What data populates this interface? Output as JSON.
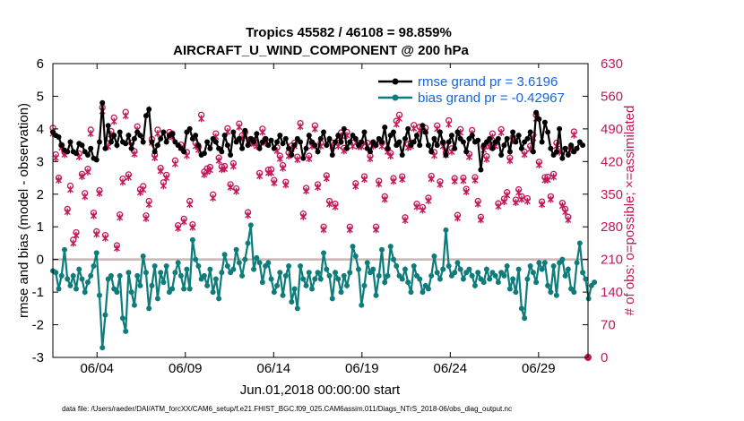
{
  "chart_data": {
    "type": "line",
    "title": "Tropics 45582 / 46108 = 98.859%",
    "subtitle": "AIRCRAFT_U_WIND_COMPONENT @ 200 hPa",
    "xlabel": "Jun.01,2018 00:00:00 start",
    "ylabel_left": "rmse and bias (model - observation)",
    "ylabel_right": "# of obs: o=possible; ×=assimilated",
    "ylim_left": [
      -3,
      6
    ],
    "ylim_right": [
      0,
      630
    ],
    "xlim": [
      1.5,
      31.8
    ],
    "yticks_left": [
      "-3",
      "-2",
      "-1",
      "0",
      "1",
      "2",
      "3",
      "4",
      "5",
      "6"
    ],
    "yticks_right": [
      "0",
      "70",
      "140",
      "210",
      "280",
      "350",
      "420",
      "490",
      "560",
      "630"
    ],
    "xticks": [
      {
        "value": 4,
        "label": "06/04"
      },
      {
        "value": 9,
        "label": "06/09"
      },
      {
        "value": 14,
        "label": "06/14"
      },
      {
        "value": 19,
        "label": "06/19"
      },
      {
        "value": 24,
        "label": "06/24"
      },
      {
        "value": 29,
        "label": "06/29"
      }
    ],
    "legend": [
      {
        "label": "rmse grand pr = 3.6196",
        "color": "#000000"
      },
      {
        "label": "bias grand pr = -0.42967",
        "color": "#0e7c7b"
      }
    ],
    "zero_line": 0,
    "series": [
      {
        "name": "rmse",
        "axis": "left",
        "color": "#000000",
        "values": [
          3.9,
          3.8,
          3.75,
          3.5,
          3.35,
          3.3,
          3.6,
          3.3,
          3.25,
          3.55,
          3.5,
          3.3,
          3.2,
          3.4,
          3.1,
          3.05,
          3.6,
          4.8,
          3.4,
          4.1,
          3.6,
          3.8,
          3.5,
          3.9,
          3.6,
          3.55,
          3.8,
          3.4,
          3.7,
          3.9,
          3.8,
          3.6,
          4.4,
          4.6,
          3.6,
          3.3,
          3.5,
          3.7,
          3.9,
          3.6,
          3.8,
          3.85,
          3.6,
          3.5,
          3.4,
          3.3,
          3.9,
          4.0,
          3.7,
          3.8,
          3.5,
          3.2,
          3.25,
          3.6,
          3.4,
          3.7,
          3.6,
          3.4,
          3.3,
          3.8,
          3.5,
          3.2,
          3.9,
          3.6,
          3.7,
          3.4,
          3.95,
          3.5,
          3.7,
          3.6,
          3.85,
          3.4,
          3.6,
          3.7,
          3.5,
          3.65,
          3.4,
          3.6,
          3.8,
          3.55,
          3.7,
          3.4,
          3.2,
          3.5,
          3.7,
          3.6,
          3.1,
          3.4,
          3.8,
          3.6,
          3.5,
          3.3,
          3.7,
          3.9,
          3.5,
          3.7,
          3.2,
          3.6,
          3.8,
          3.6,
          4.0,
          3.4,
          3.6,
          3.8,
          3.7,
          3.5,
          3.6,
          3.9,
          3.4,
          3.3,
          3.6,
          3.5,
          3.7,
          3.6,
          4.05,
          3.4,
          3.8,
          3.9,
          3.5,
          3.6,
          3.2,
          3.7,
          4.0,
          3.5,
          3.6,
          3.8,
          3.5,
          4.1,
          3.9,
          3.5,
          3.3,
          3.7,
          3.5,
          3.9,
          3.6,
          3.2,
          3.6,
          3.8,
          3.4,
          3.9,
          3.7,
          3.6,
          3.3,
          3.7,
          3.8,
          3.6,
          3.65,
          2.75,
          3.5,
          3.6,
          3.7,
          3.4,
          3.6,
          3.7,
          3.2,
          3.5,
          3.7,
          3.3,
          3.9,
          3.6,
          3.8,
          3.4,
          3.6,
          3.7,
          3.9,
          3.3,
          4.5,
          4.3,
          3.6,
          4.2,
          3.9,
          3.4,
          3.2,
          3.3,
          4.0,
          3.1,
          3.4,
          3.2,
          3.5,
          3.3,
          3.4,
          3.6,
          3.5
        ]
      },
      {
        "name": "bias",
        "axis": "left",
        "color": "#0e7c7b",
        "values": [
          -0.35,
          -0.4,
          -0.9,
          -0.5,
          0.3,
          -0.6,
          -0.8,
          -0.5,
          -0.9,
          -0.3,
          -0.6,
          -1.0,
          -0.7,
          -0.5,
          -0.2,
          0.2,
          -1.1,
          -2.7,
          -1.7,
          -0.6,
          -0.5,
          -0.9,
          -1.0,
          -0.5,
          -1.8,
          -2.2,
          -0.4,
          -1.0,
          -1.4,
          -0.5,
          -0.8,
          0.1,
          -0.4,
          -1.5,
          -0.8,
          -0.2,
          -1.2,
          -0.4,
          -0.7,
          -0.2,
          -1.0,
          -0.9,
          -0.4,
          -0.1,
          -0.5,
          -0.9,
          -0.3,
          -0.9,
          0.6,
          0.0,
          -0.2,
          -0.6,
          -0.5,
          -0.8,
          -0.3,
          -1.0,
          -0.6,
          -1.2,
          -0.4,
          0.15,
          -0.2,
          -0.4,
          -0.3,
          0.3,
          -0.1,
          -0.5,
          0.0,
          0.5,
          1.05,
          -0.3,
          0.05,
          -0.1,
          -0.7,
          -0.2,
          -0.1,
          -0.6,
          -1.0,
          -0.8,
          -0.4,
          -1.1,
          -0.5,
          -0.2,
          -1.3,
          -0.9,
          -1.5,
          -0.2,
          -0.6,
          -0.8,
          -0.4,
          -0.9,
          -0.6,
          -0.4,
          -0.6,
          0.2,
          -0.3,
          -0.5,
          -1.2,
          -0.4,
          -0.6,
          -1.0,
          -0.5,
          -0.8,
          -0.4,
          0.4,
          0.1,
          -0.3,
          -1.4,
          -0.8,
          -0.1,
          -0.4,
          -0.3,
          -1.1,
          -0.5,
          0.3,
          -0.7,
          -0.5,
          0.4,
          0.0,
          -0.2,
          -0.5,
          -0.6,
          -0.3,
          -0.7,
          -1.0,
          -0.2,
          -0.5,
          -0.6,
          -1.0,
          -0.8,
          -0.9,
          -0.5,
          0.1,
          -0.4,
          -0.6,
          -0.3,
          0.9,
          -0.2,
          -0.5,
          -0.4,
          -0.1,
          -0.3,
          -0.6,
          -0.4,
          -0.3,
          -0.5,
          -0.8,
          -0.4,
          -0.6,
          -0.7,
          -0.3,
          -0.6,
          -0.4,
          -0.5,
          -0.7,
          -0.4,
          -0.5,
          -0.2,
          -0.9,
          -0.6,
          -1.0,
          -0.3,
          -1.5,
          -1.8,
          -0.6,
          -0.2,
          -0.4,
          -0.7,
          -0.1,
          -0.3,
          -0.1,
          -0.8,
          -1.0,
          -0.2,
          -1.1,
          -0.1,
          0.0,
          -0.5,
          -0.3,
          -0.9,
          -1.0,
          -0.1,
          0.5,
          -0.4,
          -0.6,
          -1.2,
          -0.8,
          -0.7
        ]
      },
      {
        "name": "possible",
        "axis": "right",
        "color": "#c2185b",
        "marker": "o",
        "values": [
          492,
          435,
          385,
          455,
          440,
          318,
          368,
          252,
          268,
          437,
          393,
          352,
          404,
          488,
          310,
          270,
          358,
          536,
          262,
          459,
          485,
          514,
          240,
          306,
          383,
          526,
          392,
          460,
          442,
          495,
          360,
          367,
          304,
          335,
          468,
          434,
          488,
          406,
          375,
          391,
          483,
          480,
          422,
          283,
          456,
          297,
          440,
          335,
          285,
          460,
          451,
          520,
          398,
          405,
          408,
          349,
          480,
          428,
          409,
          410,
          491,
          371,
          416,
          362,
          501,
          476,
          483,
          311,
          468,
          465,
          460,
          395,
          490,
          468,
          402,
          403,
          380,
          450,
          432,
          412,
          376,
          439,
          454,
          460,
          430,
          502,
          308,
          363,
          432,
          460,
          497,
          371,
          460,
          280,
          390,
          335,
          460,
          329,
          460,
          482,
          449,
          483,
          280,
          460,
          373,
          459,
          458,
          388,
          460,
          432,
          460,
          280,
          378,
          460,
          345,
          447,
          438,
          384,
          507,
          520,
          388,
          300,
          457,
          460,
          498,
          329,
          494,
          322,
          492,
          342,
          389,
          440,
          497,
          377,
          460,
          440,
          508,
          448,
          384,
          305,
          489,
          385,
          361,
          436,
          487,
          386,
          335,
          301,
          451,
          431,
          458,
          480,
          460,
          330,
          489,
          340,
          354,
          428,
          472,
          338,
          360,
          345,
          441,
          341,
          453,
          477,
          520,
          419,
          334,
          386,
          387,
          345,
          393,
          460,
          447,
          331,
          318,
          301,
          450,
          484
        ]
      },
      {
        "name": "assimilated",
        "axis": "right",
        "color": "#c2185b",
        "marker": "x",
        "values": [
          480,
          428,
          380,
          450,
          435,
          312,
          360,
          245,
          262,
          430,
          388,
          345,
          398,
          480,
          304,
          264,
          352,
          528,
          256,
          452,
          478,
          506,
          234,
          300,
          376,
          518,
          386,
          453,
          436,
          488,
          354,
          360,
          298,
          328,
          460,
          428,
          480,
          400,
          368,
          385,
          476,
          472,
          415,
          277,
          450,
          291,
          433,
          328,
          279,
          453,
          445,
          512,
          392,
          398,
          402,
          342,
          473,
          422,
          403,
          404,
          484,
          365,
          410,
          356,
          494,
          470,
          476,
          305,
          460,
          458,
          453,
          389,
          483,
          460,
          396,
          396,
          374,
          443,
          426,
          406,
          370,
          432,
          447,
          453,
          424,
          495,
          302,
          357,
          426,
          453,
          490,
          365,
          453,
          274,
          384,
          329,
          453,
          323,
          453,
          475,
          443,
          476,
          274,
          453,
          367,
          452,
          452,
          382,
          453,
          426,
          453,
          274,
          372,
          453,
          339,
          441,
          432,
          378,
          500,
          512,
          382,
          294,
          450,
          453,
          491,
          323,
          487,
          316,
          485,
          336,
          383,
          433,
          490,
          371,
          453,
          434,
          500,
          441,
          378,
          299,
          482,
          379,
          355,
          430,
          480,
          380,
          329,
          295,
          445,
          425,
          452,
          473,
          453,
          324,
          482,
          334,
          348,
          422,
          465,
          332,
          354,
          339,
          435,
          335,
          447,
          470,
          512,
          413,
          328,
          380,
          381,
          339,
          387,
          453,
          440,
          325,
          312,
          295,
          444,
          477
        ]
      }
    ],
    "endpoint_marker": {
      "day": 31.8,
      "value": 0
    }
  },
  "footnote": "data file: /Users/raeder/DAI/ATM_forcXX/CAM6_setup/f.e21.FHIST_BGC.f09_025.CAM6assim.011/Diags_NTrS_2018-06/obs_diag_output.nc"
}
